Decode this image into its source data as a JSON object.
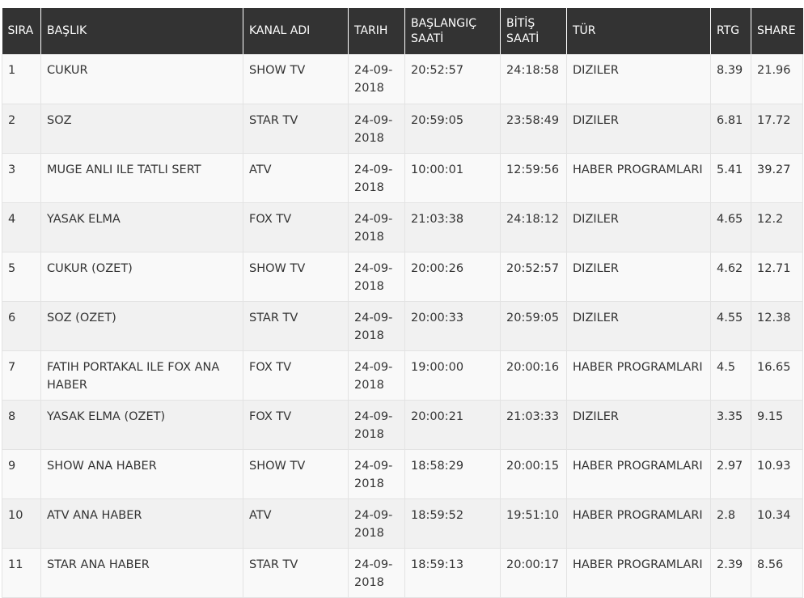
{
  "table": {
    "headers": [
      "SIRA",
      "BAŞLIK",
      "KANAL ADI",
      "TARIH",
      "BAŞLANGIÇ SAATİ",
      "BİTİŞ SAATİ",
      "TÜR",
      "RTG",
      "SHARE"
    ],
    "rows": [
      [
        "1",
        "CUKUR",
        "SHOW TV",
        "24-09-2018",
        "20:52:57",
        "24:18:58",
        "DIZILER",
        "8.39",
        "21.96"
      ],
      [
        "2",
        "SOZ",
        "STAR TV",
        "24-09-2018",
        "20:59:05",
        "23:58:49",
        "DIZILER",
        "6.81",
        "17.72"
      ],
      [
        "3",
        "MUGE ANLI ILE TATLI SERT",
        "ATV",
        "24-09-2018",
        "10:00:01",
        "12:59:56",
        "HABER PROGRAMLARI",
        "5.41",
        "39.27"
      ],
      [
        "4",
        "YASAK ELMA",
        "FOX TV",
        "24-09-2018",
        "21:03:38",
        "24:18:12",
        "DIZILER",
        "4.65",
        "12.2"
      ],
      [
        "5",
        "CUKUR (OZET)",
        "SHOW TV",
        "24-09-2018",
        "20:00:26",
        "20:52:57",
        "DIZILER",
        "4.62",
        "12.71"
      ],
      [
        "6",
        "SOZ (OZET)",
        "STAR TV",
        "24-09-2018",
        "20:00:33",
        "20:59:05",
        "DIZILER",
        "4.55",
        "12.38"
      ],
      [
        "7",
        "FATIH PORTAKAL ILE FOX ANA HABER",
        "FOX TV",
        "24-09-2018",
        "19:00:00",
        "20:00:16",
        "HABER PROGRAMLARI",
        "4.5",
        "16.65"
      ],
      [
        "8",
        "YASAK ELMA (OZET)",
        "FOX TV",
        "24-09-2018",
        "20:00:21",
        "21:03:33",
        "DIZILER",
        "3.35",
        "9.15"
      ],
      [
        "9",
        "SHOW ANA HABER",
        "SHOW TV",
        "24-09-2018",
        "18:58:29",
        "20:00:15",
        "HABER PROGRAMLARI",
        "2.97",
        "10.93"
      ],
      [
        "10",
        "ATV ANA HABER",
        "ATV",
        "24-09-2018",
        "18:59:52",
        "19:51:10",
        "HABER PROGRAMLARI",
        "2.8",
        "10.34"
      ],
      [
        "11",
        "STAR ANA HABER",
        "STAR TV",
        "24-09-2018",
        "18:59:13",
        "20:00:17",
        "HABER PROGRAMLARI",
        "2.39",
        "8.56"
      ]
    ]
  }
}
